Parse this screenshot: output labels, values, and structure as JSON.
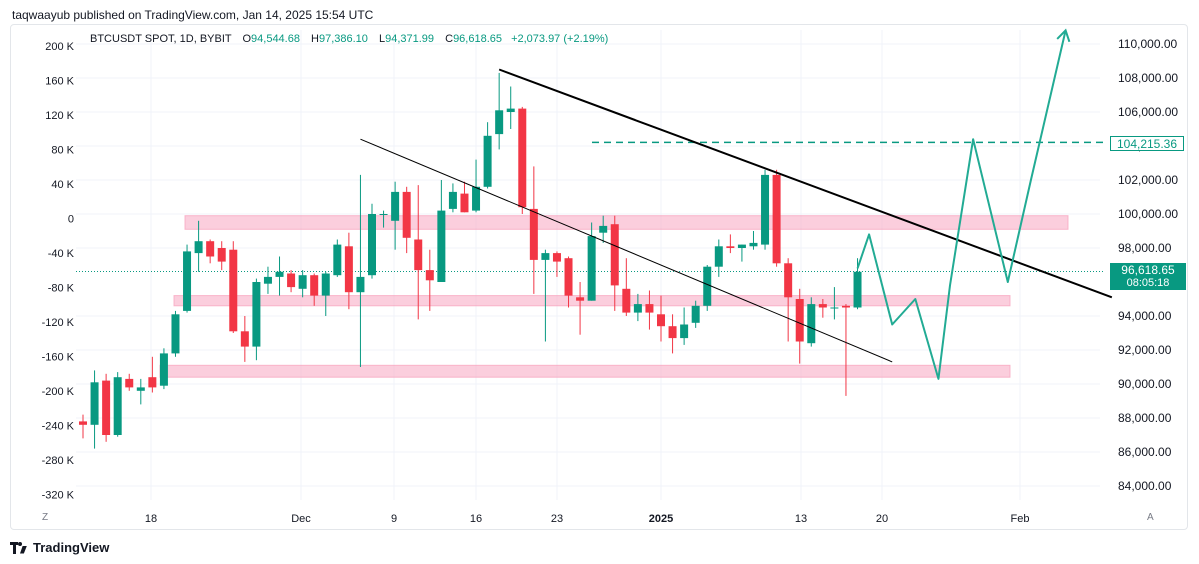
{
  "header": {
    "published_line": "taqwaayub published on TradingView.com, Jan 14, 2025 15:54 UTC"
  },
  "legend": {
    "symbol": "BTCUSDT SPOT, 1D, BYBIT",
    "o_label": "O",
    "o_value": "94,544.68",
    "h_label": "H",
    "h_value": "97,386.10",
    "l_label": "L",
    "l_value": "94,371.99",
    "c_label": "C",
    "c_value": "96,618.65",
    "change": "+2,073.97 (+2.19%)"
  },
  "price_tags": {
    "level": "104,215.36",
    "current": "96,618.65",
    "countdown": "08:05:18"
  },
  "corners": {
    "left": "Z",
    "right": "A"
  },
  "footer": {
    "brand": "TradingView"
  },
  "colors": {
    "up": "#089981",
    "down": "#f23645",
    "zone": "#f7a6c1",
    "projection": "#22ab94",
    "trend": "#000000"
  },
  "chart_data": {
    "type": "candlestick",
    "symbol": "BTCUSDT SPOT",
    "interval": "1D",
    "x_tick_labels": [
      "18",
      "Dec",
      "9",
      "16",
      "23",
      "2025",
      "13",
      "20",
      "Feb"
    ],
    "right_axis_ticks": [
      "110,000.00",
      "108,000.00",
      "106,000.00",
      "104,000.00",
      "102,000.00",
      "100,000.00",
      "98,000.00",
      "94,000.00",
      "92,000.00",
      "90,000.00",
      "88,000.00",
      "86,000.00",
      "84,000.00"
    ],
    "left_axis_ticks": [
      "200 K",
      "160 K",
      "120 K",
      "80 K",
      "40 K",
      "0",
      "-40 K",
      "-80 K",
      "-120 K",
      "-160 K",
      "-200 K",
      "-240 K",
      "-280 K",
      "-320 K"
    ],
    "ylim": [
      82000,
      111500
    ],
    "candles": [
      {
        "o": 87800,
        "h": 88200,
        "l": 86800,
        "c": 87600
      },
      {
        "o": 87600,
        "h": 90800,
        "l": 86200,
        "c": 90100
      },
      {
        "o": 90200,
        "h": 90600,
        "l": 86600,
        "c": 87000
      },
      {
        "o": 87000,
        "h": 90700,
        "l": 86900,
        "c": 90400
      },
      {
        "o": 90300,
        "h": 90600,
        "l": 89600,
        "c": 89800
      },
      {
        "o": 89600,
        "h": 90300,
        "l": 88800,
        "c": 89800
      },
      {
        "o": 90400,
        "h": 91600,
        "l": 89500,
        "c": 89800
      },
      {
        "o": 89900,
        "h": 92100,
        "l": 89700,
        "c": 91800
      },
      {
        "o": 91800,
        "h": 94300,
        "l": 91600,
        "c": 94100
      },
      {
        "o": 94300,
        "h": 98200,
        "l": 94200,
        "c": 97800
      },
      {
        "o": 97700,
        "h": 99600,
        "l": 96600,
        "c": 98400
      },
      {
        "o": 98400,
        "h": 98500,
        "l": 97100,
        "c": 97500
      },
      {
        "o": 98000,
        "h": 98400,
        "l": 96700,
        "c": 97200
      },
      {
        "o": 97900,
        "h": 98400,
        "l": 93000,
        "c": 93100
      },
      {
        "o": 93100,
        "h": 94000,
        "l": 91300,
        "c": 92200
      },
      {
        "o": 92200,
        "h": 96200,
        "l": 91400,
        "c": 96000
      },
      {
        "o": 95900,
        "h": 96900,
        "l": 95300,
        "c": 96300
      },
      {
        "o": 96300,
        "h": 97500,
        "l": 95200,
        "c": 96600
      },
      {
        "o": 96500,
        "h": 96700,
        "l": 95400,
        "c": 95700
      },
      {
        "o": 95600,
        "h": 96700,
        "l": 95100,
        "c": 96400
      },
      {
        "o": 96400,
        "h": 96500,
        "l": 94600,
        "c": 95200
      },
      {
        "o": 95200,
        "h": 96600,
        "l": 94000,
        "c": 96500
      },
      {
        "o": 96400,
        "h": 98500,
        "l": 96300,
        "c": 98200
      },
      {
        "o": 98100,
        "h": 98900,
        "l": 94400,
        "c": 95400
      },
      {
        "o": 95400,
        "h": 102300,
        "l": 91000,
        "c": 96300
      },
      {
        "o": 96400,
        "h": 100600,
        "l": 96200,
        "c": 100000
      },
      {
        "o": 100000,
        "h": 100200,
        "l": 99200,
        "c": 100000
      },
      {
        "o": 99600,
        "h": 101900,
        "l": 97900,
        "c": 101300
      },
      {
        "o": 101300,
        "h": 101600,
        "l": 97700,
        "c": 98600
      },
      {
        "o": 98500,
        "h": 101700,
        "l": 93800,
        "c": 96700
      },
      {
        "o": 96700,
        "h": 97900,
        "l": 94300,
        "c": 96100
      },
      {
        "o": 96000,
        "h": 102000,
        "l": 96000,
        "c": 100200
      },
      {
        "o": 100300,
        "h": 101800,
        "l": 100100,
        "c": 101300
      },
      {
        "o": 101200,
        "h": 101900,
        "l": 100100,
        "c": 100100
      },
      {
        "o": 100200,
        "h": 103200,
        "l": 100100,
        "c": 101600
      },
      {
        "o": 101600,
        "h": 105400,
        "l": 101500,
        "c": 104600
      },
      {
        "o": 104700,
        "h": 108300,
        "l": 103800,
        "c": 106100
      },
      {
        "o": 106000,
        "h": 107500,
        "l": 105000,
        "c": 106200
      },
      {
        "o": 106200,
        "h": 106300,
        "l": 100000,
        "c": 100400
      },
      {
        "o": 100300,
        "h": 102800,
        "l": 95300,
        "c": 97300
      },
      {
        "o": 97300,
        "h": 97900,
        "l": 92500,
        "c": 97700
      },
      {
        "o": 97700,
        "h": 97800,
        "l": 96300,
        "c": 97200
      },
      {
        "o": 97400,
        "h": 97500,
        "l": 94500,
        "c": 95200
      },
      {
        "o": 95100,
        "h": 96000,
        "l": 92900,
        "c": 94900
      },
      {
        "o": 94900,
        "h": 99500,
        "l": 94900,
        "c": 98700
      },
      {
        "o": 98900,
        "h": 99900,
        "l": 98300,
        "c": 99300
      },
      {
        "o": 99400,
        "h": 99900,
        "l": 94300,
        "c": 95800
      },
      {
        "o": 95600,
        "h": 97400,
        "l": 94000,
        "c": 94200
      },
      {
        "o": 94200,
        "h": 95300,
        "l": 93700,
        "c": 94700
      },
      {
        "o": 94700,
        "h": 95500,
        "l": 93200,
        "c": 94200
      },
      {
        "o": 94100,
        "h": 95200,
        "l": 92500,
        "c": 93400
      },
      {
        "o": 93400,
        "h": 94100,
        "l": 91800,
        "c": 92700
      },
      {
        "o": 92700,
        "h": 94500,
        "l": 92300,
        "c": 93500
      },
      {
        "o": 93600,
        "h": 94900,
        "l": 93300,
        "c": 94600
      },
      {
        "o": 94600,
        "h": 97000,
        "l": 94300,
        "c": 96900
      },
      {
        "o": 96900,
        "h": 98500,
        "l": 96300,
        "c": 98100
      },
      {
        "o": 98100,
        "h": 98800,
        "l": 97700,
        "c": 98000
      },
      {
        "o": 98000,
        "h": 98200,
        "l": 97200,
        "c": 98200
      },
      {
        "o": 98100,
        "h": 99000,
        "l": 97900,
        "c": 98300
      },
      {
        "o": 98200,
        "h": 102600,
        "l": 97900,
        "c": 102300
      },
      {
        "o": 102300,
        "h": 102600,
        "l": 96900,
        "c": 97100
      },
      {
        "o": 97100,
        "h": 97400,
        "l": 92500,
        "c": 95100
      },
      {
        "o": 95000,
        "h": 95600,
        "l": 91200,
        "c": 92500
      },
      {
        "o": 92400,
        "h": 95100,
        "l": 92200,
        "c": 94700
      },
      {
        "o": 94700,
        "h": 95000,
        "l": 93900,
        "c": 94500
      },
      {
        "o": 94500,
        "h": 95700,
        "l": 93800,
        "c": 94500
      },
      {
        "o": 94600,
        "h": 94700,
        "l": 89300,
        "c": 94500
      },
      {
        "o": 94500,
        "h": 97400,
        "l": 94400,
        "c": 96600
      }
    ],
    "zones": [
      {
        "top": 99900,
        "bottom": 99100
      },
      {
        "top": 95200,
        "bottom": 94600
      },
      {
        "top": 91100,
        "bottom": 90400
      }
    ],
    "horizontal_level": 104215.36,
    "current_price": 96618.65,
    "trendlines": [
      {
        "from_bar": 36,
        "from_price": 108500,
        "to_bar": 89,
        "to_price": 95100,
        "width": 2
      },
      {
        "from_bar": 24,
        "from_price": 104400,
        "to_bar": 70,
        "to_price": 91300,
        "width": 1
      }
    ],
    "projection": [
      {
        "bar": 67,
        "price": 96800
      },
      {
        "bar": 68,
        "price": 98800
      },
      {
        "bar": 70,
        "price": 93500
      },
      {
        "bar": 72,
        "price": 95000
      },
      {
        "bar": 74,
        "price": 90300
      },
      {
        "bar": 75,
        "price": 95800
      },
      {
        "bar": 77,
        "price": 104400
      },
      {
        "bar": 80,
        "price": 96000
      },
      {
        "bar": 82,
        "price": 102000
      },
      {
        "bar": 85,
        "price": 110800
      }
    ]
  }
}
